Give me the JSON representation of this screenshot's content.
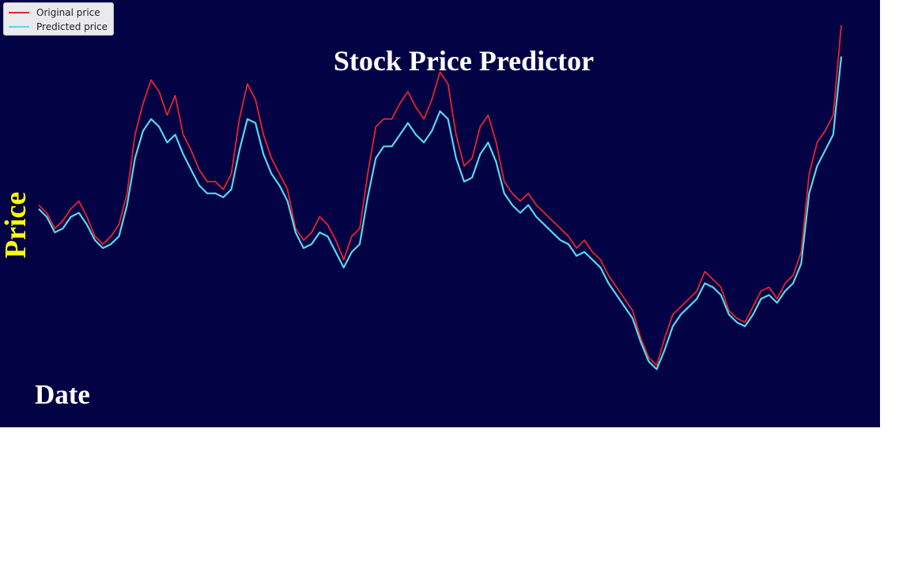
{
  "chart_data": {
    "type": "line",
    "title": "Stock Price Predictor",
    "xlabel": "Date",
    "ylabel": "Price",
    "x_range": [
      0,
      100
    ],
    "ylim": [
      0,
      100
    ],
    "grid": false,
    "legend_position": "top-left",
    "background": "#020244",
    "series": [
      {
        "name": "Original price",
        "color": "#e8232a",
        "points": [
          [
            0,
            52
          ],
          [
            1,
            50
          ],
          [
            2,
            46
          ],
          [
            3,
            48
          ],
          [
            4,
            51
          ],
          [
            5,
            53
          ],
          [
            6,
            49
          ],
          [
            7,
            44
          ],
          [
            8,
            42
          ],
          [
            9,
            44
          ],
          [
            10,
            47
          ],
          [
            11,
            55
          ],
          [
            12,
            70
          ],
          [
            13,
            78
          ],
          [
            14,
            84
          ],
          [
            15,
            81
          ],
          [
            16,
            75
          ],
          [
            17,
            80
          ],
          [
            18,
            70
          ],
          [
            19,
            66
          ],
          [
            20,
            61
          ],
          [
            21,
            58
          ],
          [
            22,
            58
          ],
          [
            23,
            56
          ],
          [
            24,
            60
          ],
          [
            25,
            74
          ],
          [
            26,
            83
          ],
          [
            27,
            79
          ],
          [
            28,
            70
          ],
          [
            29,
            64
          ],
          [
            30,
            60
          ],
          [
            31,
            56
          ],
          [
            32,
            46
          ],
          [
            33,
            43
          ],
          [
            34,
            45
          ],
          [
            35,
            49
          ],
          [
            36,
            47
          ],
          [
            37,
            43
          ],
          [
            38,
            38
          ],
          [
            39,
            44
          ],
          [
            40,
            46
          ],
          [
            41,
            60
          ],
          [
            42,
            72
          ],
          [
            43,
            74
          ],
          [
            44,
            74
          ],
          [
            45,
            78
          ],
          [
            46,
            81
          ],
          [
            47,
            77
          ],
          [
            48,
            74
          ],
          [
            49,
            79
          ],
          [
            50,
            86
          ],
          [
            51,
            83
          ],
          [
            52,
            70
          ],
          [
            53,
            62
          ],
          [
            54,
            64
          ],
          [
            55,
            72
          ],
          [
            56,
            75
          ],
          [
            57,
            68
          ],
          [
            58,
            58
          ],
          [
            59,
            55
          ],
          [
            60,
            53
          ],
          [
            61,
            55
          ],
          [
            62,
            52
          ],
          [
            63,
            50
          ],
          [
            64,
            48
          ],
          [
            65,
            46
          ],
          [
            66,
            44
          ],
          [
            67,
            41
          ],
          [
            68,
            43
          ],
          [
            69,
            40
          ],
          [
            70,
            38
          ],
          [
            71,
            34
          ],
          [
            72,
            31
          ],
          [
            73,
            28
          ],
          [
            74,
            25
          ],
          [
            75,
            18
          ],
          [
            76,
            13
          ],
          [
            77,
            11
          ],
          [
            78,
            18
          ],
          [
            79,
            24
          ],
          [
            80,
            26
          ],
          [
            81,
            28
          ],
          [
            82,
            30
          ],
          [
            83,
            35
          ],
          [
            84,
            33
          ],
          [
            85,
            31
          ],
          [
            86,
            25
          ],
          [
            87,
            23
          ],
          [
            88,
            22
          ],
          [
            89,
            26
          ],
          [
            90,
            30
          ],
          [
            91,
            31
          ],
          [
            92,
            28
          ],
          [
            93,
            32
          ],
          [
            94,
            34
          ],
          [
            95,
            40
          ],
          [
            96,
            60
          ],
          [
            97,
            68
          ],
          [
            98,
            71
          ],
          [
            99,
            75
          ],
          [
            100,
            98
          ]
        ]
      },
      {
        "name": "Predicted price",
        "color": "#55d8ee",
        "points": [
          [
            0,
            51
          ],
          [
            1,
            49
          ],
          [
            2,
            45
          ],
          [
            3,
            46
          ],
          [
            4,
            49
          ],
          [
            5,
            50
          ],
          [
            6,
            47
          ],
          [
            7,
            43
          ],
          [
            8,
            41
          ],
          [
            9,
            42
          ],
          [
            10,
            44
          ],
          [
            11,
            52
          ],
          [
            12,
            64
          ],
          [
            13,
            71
          ],
          [
            14,
            74
          ],
          [
            15,
            72
          ],
          [
            16,
            68
          ],
          [
            17,
            70
          ],
          [
            18,
            65
          ],
          [
            19,
            61
          ],
          [
            20,
            57
          ],
          [
            21,
            55
          ],
          [
            22,
            55
          ],
          [
            23,
            54
          ],
          [
            24,
            56
          ],
          [
            25,
            66
          ],
          [
            26,
            74
          ],
          [
            27,
            73
          ],
          [
            28,
            65
          ],
          [
            29,
            60
          ],
          [
            30,
            57
          ],
          [
            31,
            53
          ],
          [
            32,
            45
          ],
          [
            33,
            41
          ],
          [
            34,
            42
          ],
          [
            35,
            45
          ],
          [
            36,
            44
          ],
          [
            37,
            40
          ],
          [
            38,
            36
          ],
          [
            39,
            40
          ],
          [
            40,
            42
          ],
          [
            41,
            54
          ],
          [
            42,
            64
          ],
          [
            43,
            67
          ],
          [
            44,
            67
          ],
          [
            45,
            70
          ],
          [
            46,
            73
          ],
          [
            47,
            70
          ],
          [
            48,
            68
          ],
          [
            49,
            71
          ],
          [
            50,
            76
          ],
          [
            51,
            74
          ],
          [
            52,
            64
          ],
          [
            53,
            58
          ],
          [
            54,
            59
          ],
          [
            55,
            65
          ],
          [
            56,
            68
          ],
          [
            57,
            63
          ],
          [
            58,
            55
          ],
          [
            59,
            52
          ],
          [
            60,
            50
          ],
          [
            61,
            52
          ],
          [
            62,
            49
          ],
          [
            63,
            47
          ],
          [
            64,
            45
          ],
          [
            65,
            43
          ],
          [
            66,
            42
          ],
          [
            67,
            39
          ],
          [
            68,
            40
          ],
          [
            69,
            38
          ],
          [
            70,
            36
          ],
          [
            71,
            32
          ],
          [
            72,
            29
          ],
          [
            73,
            26
          ],
          [
            74,
            23
          ],
          [
            75,
            17
          ],
          [
            76,
            12
          ],
          [
            77,
            10
          ],
          [
            78,
            15
          ],
          [
            79,
            21
          ],
          [
            80,
            24
          ],
          [
            81,
            26
          ],
          [
            82,
            28
          ],
          [
            83,
            32
          ],
          [
            84,
            31
          ],
          [
            85,
            29
          ],
          [
            86,
            24
          ],
          [
            87,
            22
          ],
          [
            88,
            21
          ],
          [
            89,
            24
          ],
          [
            90,
            28
          ],
          [
            91,
            29
          ],
          [
            92,
            27
          ],
          [
            93,
            30
          ],
          [
            94,
            32
          ],
          [
            95,
            37
          ],
          [
            96,
            55
          ],
          [
            97,
            62
          ],
          [
            98,
            66
          ],
          [
            99,
            70
          ],
          [
            100,
            90
          ]
        ]
      }
    ]
  }
}
